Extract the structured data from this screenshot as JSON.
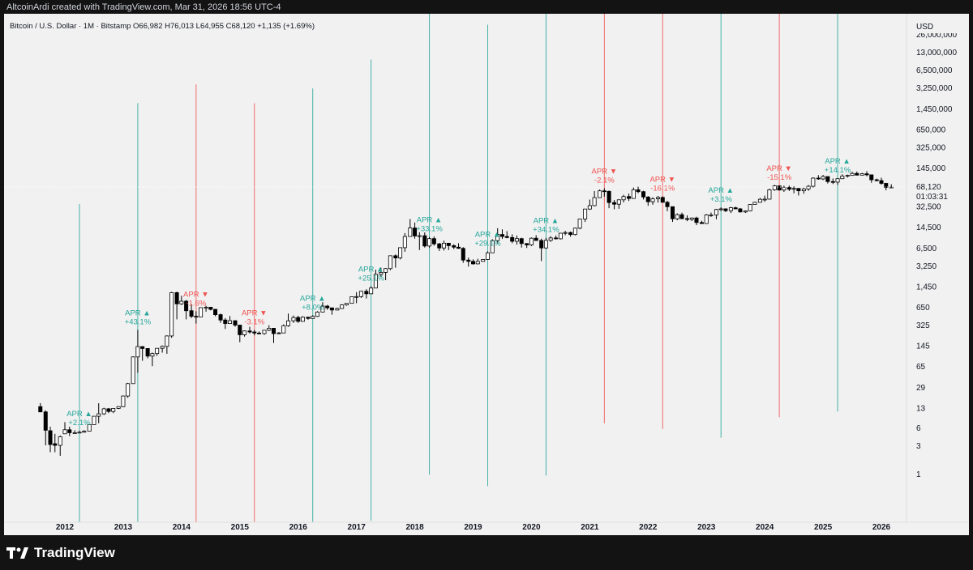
{
  "header": {
    "text": "AltcoinArdi created with TradingView.com, Mar 31, 2026 18:56 UTC-4"
  },
  "symbol": {
    "text": "Bitcoin / U.S. Dollar · 1M · Bitstamp  O66,982  H76,013  L64,955  C68,120  +1,135 (+1.69%)"
  },
  "brand": {
    "name": "TradingView"
  },
  "colors": {
    "up": "#26a69a",
    "down": "#ef5350",
    "candle": "#000000",
    "background": "#f1f1f1"
  },
  "chart_data": {
    "type": "candlestick",
    "scale": "log",
    "currency": "USD",
    "y_ticks": [
      "26,000,000",
      "13,000,000",
      "6,500,000",
      "3,250,000",
      "1,450,000",
      "650,000",
      "325,000",
      "145,000",
      "32,500",
      "14,500",
      "6,500",
      "3,250",
      "1,450",
      "650",
      "325",
      "145",
      "65",
      "29",
      "13",
      "6",
      "3",
      "1"
    ],
    "y_tick_values": [
      26000000,
      13000000,
      6500000,
      3250000,
      1450000,
      650000,
      325000,
      145000,
      32500,
      14500,
      6500,
      3250,
      1450,
      650,
      325,
      145,
      65,
      29,
      13,
      6,
      3,
      1
    ],
    "x_ticks": [
      "2012",
      "2013",
      "2014",
      "2015",
      "2016",
      "2017",
      "2018",
      "2019",
      "2020",
      "2021",
      "2022",
      "2023",
      "2024",
      "2025",
      "2026"
    ],
    "last_price": {
      "value": "68,120",
      "countdown": "01:03:31"
    },
    "annotations": [
      {
        "year": 2012,
        "month": "APR",
        "dir": "up",
        "arrow": "▲",
        "change": "+2.1%"
      },
      {
        "year": 2013,
        "month": "APR",
        "dir": "up",
        "arrow": "▲",
        "change": "+43.1%"
      },
      {
        "year": 2014,
        "month": "APR",
        "dir": "down",
        "arrow": "▼",
        "change": "-1.6%"
      },
      {
        "year": 2015,
        "month": "APR",
        "dir": "down",
        "arrow": "▼",
        "change": "-3.1%"
      },
      {
        "year": 2016,
        "month": "APR",
        "dir": "up",
        "arrow": "▲",
        "change": "+8.0%"
      },
      {
        "year": 2017,
        "month": "APR",
        "dir": "up",
        "arrow": "▲",
        "change": "+25.1%"
      },
      {
        "year": 2018,
        "month": "APR",
        "dir": "up",
        "arrow": "▲",
        "change": "+33.1%"
      },
      {
        "year": 2019,
        "month": "APR",
        "dir": "up",
        "arrow": "▲",
        "change": "+29.1%"
      },
      {
        "year": 2020,
        "month": "APR",
        "dir": "up",
        "arrow": "▲",
        "change": "+34.1%"
      },
      {
        "year": 2021,
        "month": "APR",
        "dir": "down",
        "arrow": "▼",
        "change": "-2.1%"
      },
      {
        "year": 2022,
        "month": "APR",
        "dir": "down",
        "arrow": "▼",
        "change": "-16.1%"
      },
      {
        "year": 2023,
        "month": "APR",
        "dir": "up",
        "arrow": "▲",
        "change": "+3.1%"
      },
      {
        "year": 2024,
        "month": "APR",
        "dir": "down",
        "arrow": "▼",
        "change": "-15.1%"
      },
      {
        "year": 2025,
        "month": "APR",
        "dir": "up",
        "arrow": "▲",
        "change": "+14.1%"
      }
    ],
    "candles": [
      [
        2011.58,
        13.5,
        15.5,
        10.9,
        11.0
      ],
      [
        2011.67,
        11.0,
        11.7,
        3.0,
        5.4
      ],
      [
        2011.75,
        5.3,
        6.2,
        2.3,
        3.1
      ],
      [
        2011.83,
        3.2,
        4.7,
        2.3,
        3.0
      ],
      [
        2011.92,
        3.0,
        4.4,
        2.0,
        4.2
      ],
      [
        2012.0,
        4.7,
        7.4,
        4.7,
        5.5
      ],
      [
        2012.08,
        5.5,
        6.2,
        4.3,
        4.9
      ],
      [
        2012.17,
        4.9,
        5.4,
        4.8,
        4.9
      ],
      [
        2012.25,
        4.9,
        5.3,
        4.8,
        5.0
      ],
      [
        2012.33,
        5.0,
        5.4,
        4.9,
        5.2
      ],
      [
        2012.42,
        5.2,
        6.7,
        5.2,
        6.7
      ],
      [
        2012.5,
        6.7,
        9.3,
        6.7,
        9.3
      ],
      [
        2012.58,
        9.3,
        15.4,
        7.1,
        10.2
      ],
      [
        2012.67,
        10.2,
        12.9,
        9.8,
        12.4
      ],
      [
        2012.75,
        12.4,
        12.8,
        10.5,
        11.2
      ],
      [
        2012.83,
        11.2,
        12.7,
        10.5,
        12.6
      ],
      [
        2012.92,
        12.6,
        13.7,
        12.3,
        13.5
      ],
      [
        2013.0,
        13.5,
        20.8,
        13.2,
        20.4
      ],
      [
        2013.08,
        20.4,
        34.0,
        19.0,
        33.0
      ],
      [
        2013.17,
        33.0,
        95.0,
        33.0,
        93.0
      ],
      [
        2013.25,
        93.0,
        266,
        50.0,
        139
      ],
      [
        2013.33,
        139,
        140,
        80,
        129
      ],
      [
        2013.42,
        129,
        130,
        88,
        96
      ],
      [
        2013.5,
        96,
        110,
        65,
        106
      ],
      [
        2013.58,
        106,
        130,
        97,
        130
      ],
      [
        2013.67,
        130,
        145,
        110,
        140
      ],
      [
        2013.75,
        140,
        215,
        105,
        210
      ],
      [
        2013.83,
        210,
        1163,
        195,
        1130
      ],
      [
        2013.92,
        1130,
        1170,
        400,
        730
      ],
      [
        2014.0,
        730,
        1000,
        700,
        810
      ],
      [
        2014.08,
        810,
        850,
        400,
        560
      ],
      [
        2014.17,
        560,
        720,
        420,
        450
      ],
      [
        2014.25,
        450,
        550,
        340,
        440
      ],
      [
        2014.33,
        440,
        630,
        440,
        630
      ],
      [
        2014.42,
        630,
        680,
        540,
        640
      ],
      [
        2014.5,
        640,
        650,
        565,
        590
      ],
      [
        2014.58,
        590,
        600,
        450,
        480
      ],
      [
        2014.67,
        480,
        500,
        350,
        390
      ],
      [
        2014.75,
        390,
        420,
        275,
        340
      ],
      [
        2014.83,
        340,
        455,
        340,
        380
      ],
      [
        2014.92,
        380,
        385,
        300,
        320
      ],
      [
        2015.0,
        320,
        320,
        165,
        220
      ],
      [
        2015.08,
        220,
        260,
        205,
        255
      ],
      [
        2015.17,
        255,
        300,
        230,
        245
      ],
      [
        2015.25,
        245,
        265,
        215,
        235
      ],
      [
        2015.33,
        235,
        250,
        225,
        230
      ],
      [
        2015.42,
        230,
        265,
        220,
        262
      ],
      [
        2015.5,
        262,
        318,
        253,
        283
      ],
      [
        2015.58,
        283,
        285,
        160,
        230
      ],
      [
        2015.67,
        230,
        245,
        225,
        236
      ],
      [
        2015.75,
        236,
        330,
        235,
        312
      ],
      [
        2015.83,
        312,
        500,
        300,
        378
      ],
      [
        2015.92,
        378,
        465,
        350,
        430
      ],
      [
        2016.0,
        430,
        460,
        350,
        370
      ],
      [
        2016.08,
        370,
        450,
        370,
        435
      ],
      [
        2016.17,
        435,
        440,
        395,
        415
      ],
      [
        2016.25,
        415,
        470,
        415,
        450
      ],
      [
        2016.33,
        450,
        550,
        440,
        530
      ],
      [
        2016.42,
        530,
        780,
        525,
        670
      ],
      [
        2016.5,
        670,
        700,
        580,
        625
      ],
      [
        2016.58,
        625,
        625,
        480,
        575
      ],
      [
        2016.67,
        575,
        630,
        570,
        610
      ],
      [
        2016.75,
        610,
        720,
        600,
        700
      ],
      [
        2016.83,
        700,
        750,
        680,
        745
      ],
      [
        2016.92,
        745,
        970,
        745,
        965
      ],
      [
        2017.0,
        965,
        1150,
        750,
        970
      ],
      [
        2017.08,
        970,
        1210,
        920,
        1190
      ],
      [
        2017.17,
        1190,
        1290,
        900,
        1080
      ],
      [
        2017.25,
        1080,
        1450,
        1070,
        1350
      ],
      [
        2017.33,
        1350,
        2760,
        1350,
        2300
      ],
      [
        2017.42,
        2300,
        2980,
        2100,
        2480
      ],
      [
        2017.5,
        2480,
        2920,
        1830,
        2870
      ],
      [
        2017.58,
        2870,
        4750,
        2700,
        4730
      ],
      [
        2017.67,
        4730,
        4980,
        2970,
        4340
      ],
      [
        2017.75,
        4340,
        6470,
        4100,
        6470
      ],
      [
        2017.83,
        6470,
        11400,
        5520,
        10000
      ],
      [
        2017.92,
        10000,
        19700,
        10000,
        13900
      ],
      [
        2018.0,
        13900,
        17200,
        9200,
        10200
      ],
      [
        2018.08,
        10200,
        11800,
        5900,
        10300
      ],
      [
        2018.17,
        10300,
        11700,
        6500,
        6900
      ],
      [
        2018.25,
        6900,
        9800,
        6400,
        9200
      ],
      [
        2018.33,
        9200,
        10000,
        7000,
        7500
      ],
      [
        2018.42,
        7500,
        7800,
        5700,
        6400
      ],
      [
        2018.5,
        6400,
        8500,
        5800,
        7700
      ],
      [
        2018.58,
        7700,
        7800,
        5900,
        7000
      ],
      [
        2018.67,
        7000,
        7400,
        6100,
        6600
      ],
      [
        2018.75,
        6600,
        7700,
        6200,
        6300
      ],
      [
        2018.83,
        6300,
        6600,
        3600,
        4000
      ],
      [
        2018.92,
        4000,
        4400,
        3100,
        3800
      ],
      [
        2019.0,
        3800,
        4100,
        3350,
        3450
      ],
      [
        2019.08,
        3450,
        4200,
        3400,
        3800
      ],
      [
        2019.17,
        3800,
        4100,
        3800,
        4100
      ],
      [
        2019.25,
        4100,
        5600,
        4100,
        5300
      ],
      [
        2019.33,
        5300,
        9000,
        5300,
        8500
      ],
      [
        2019.42,
        8500,
        13800,
        7500,
        10800
      ],
      [
        2019.5,
        10800,
        13200,
        9100,
        10000
      ],
      [
        2019.58,
        10000,
        12300,
        9300,
        9600
      ],
      [
        2019.67,
        9600,
        10900,
        7700,
        8300
      ],
      [
        2019.75,
        8300,
        10400,
        7300,
        9200
      ],
      [
        2019.83,
        9200,
        9500,
        6500,
        7600
      ],
      [
        2019.92,
        7600,
        7700,
        6400,
        7200
      ],
      [
        2020.0,
        7200,
        9600,
        6900,
        9350
      ],
      [
        2020.08,
        9350,
        10500,
        8500,
        8550
      ],
      [
        2020.17,
        8550,
        9200,
        3850,
        6400
      ],
      [
        2020.25,
        6400,
        9500,
        6200,
        8600
      ],
      [
        2020.33,
        8600,
        10100,
        8100,
        9450
      ],
      [
        2020.42,
        9450,
        10400,
        8900,
        9140
      ],
      [
        2020.5,
        9140,
        11400,
        8900,
        11350
      ],
      [
        2020.58,
        11350,
        12470,
        10500,
        11650
      ],
      [
        2020.67,
        11650,
        12100,
        9900,
        10780
      ],
      [
        2020.75,
        10780,
        14100,
        10400,
        13800
      ],
      [
        2020.83,
        13800,
        19900,
        13200,
        19700
      ],
      [
        2020.92,
        19700,
        29300,
        17600,
        29000
      ],
      [
        2021.0,
        29000,
        41900,
        28100,
        33100
      ],
      [
        2021.08,
        33100,
        58300,
        32300,
        45200
      ],
      [
        2021.17,
        45200,
        61800,
        45000,
        58800
      ],
      [
        2021.25,
        58800,
        64800,
        47000,
        57700
      ],
      [
        2021.33,
        57700,
        59500,
        30000,
        37300
      ],
      [
        2021.42,
        37300,
        41300,
        28800,
        35000
      ],
      [
        2021.5,
        35000,
        42400,
        29300,
        41500
      ],
      [
        2021.58,
        41500,
        50500,
        37400,
        47100
      ],
      [
        2021.67,
        47100,
        52900,
        39600,
        43800
      ],
      [
        2021.75,
        43800,
        66900,
        43300,
        61300
      ],
      [
        2021.83,
        61300,
        69000,
        53500,
        57000
      ],
      [
        2021.92,
        57000,
        59000,
        42000,
        46300
      ],
      [
        2022.0,
        46300,
        48000,
        32900,
        38500
      ],
      [
        2022.08,
        38500,
        45800,
        34300,
        43200
      ],
      [
        2022.17,
        43200,
        48200,
        37200,
        45500
      ],
      [
        2022.25,
        45500,
        47400,
        37600,
        37700
      ],
      [
        2022.33,
        37700,
        40000,
        26700,
        31800
      ],
      [
        2022.42,
        31800,
        31900,
        17600,
        19900
      ],
      [
        2022.5,
        19900,
        24600,
        18800,
        23300
      ],
      [
        2022.58,
        23300,
        25200,
        19500,
        20000
      ],
      [
        2022.67,
        20000,
        22700,
        18100,
        19400
      ],
      [
        2022.75,
        19400,
        20900,
        18200,
        20500
      ],
      [
        2022.83,
        20500,
        21500,
        15500,
        17200
      ],
      [
        2022.92,
        17200,
        18400,
        16300,
        16500
      ],
      [
        2023.0,
        16500,
        23900,
        16500,
        23100
      ],
      [
        2023.08,
        23100,
        25300,
        21400,
        23100
      ],
      [
        2023.17,
        23100,
        29200,
        19500,
        28500
      ],
      [
        2023.25,
        28500,
        31000,
        26900,
        29200
      ],
      [
        2023.33,
        29200,
        29800,
        25800,
        27200
      ],
      [
        2023.42,
        27200,
        31400,
        24800,
        30500
      ],
      [
        2023.5,
        30500,
        31800,
        28900,
        29200
      ],
      [
        2023.58,
        29200,
        30200,
        25300,
        25900
      ],
      [
        2023.67,
        25900,
        27500,
        24900,
        27000
      ],
      [
        2023.75,
        27000,
        35200,
        26600,
        34600
      ],
      [
        2023.83,
        34600,
        38400,
        34100,
        37700
      ],
      [
        2023.92,
        37700,
        44700,
        37600,
        42300
      ],
      [
        2024.0,
        42300,
        48900,
        38500,
        42600
      ],
      [
        2024.08,
        42600,
        63900,
        41900,
        61200
      ],
      [
        2024.17,
        61200,
        73800,
        59000,
        71300
      ],
      [
        2024.25,
        71300,
        72700,
        59600,
        60700
      ],
      [
        2024.33,
        60700,
        71900,
        56500,
        67500
      ],
      [
        2024.42,
        67500,
        71900,
        58400,
        62700
      ],
      [
        2024.5,
        62700,
        70000,
        53500,
        64600
      ],
      [
        2024.58,
        64600,
        65000,
        49000,
        58900
      ],
      [
        2024.67,
        58900,
        66500,
        52600,
        63300
      ],
      [
        2024.75,
        63300,
        73600,
        58900,
        70200
      ],
      [
        2024.83,
        70200,
        99500,
        66800,
        96400
      ],
      [
        2024.92,
        96400,
        108300,
        90500,
        93400
      ],
      [
        2025.0,
        93400,
        109300,
        89200,
        102400
      ],
      [
        2025.08,
        102400,
        102700,
        78200,
        84300
      ],
      [
        2025.17,
        84300,
        95000,
        76600,
        82500
      ],
      [
        2025.25,
        82500,
        95800,
        74400,
        94200
      ],
      [
        2025.33,
        94200,
        111900,
        93400,
        104600
      ],
      [
        2025.42,
        104600,
        110400,
        98200,
        107100
      ],
      [
        2025.5,
        107100,
        123200,
        105300,
        115700
      ],
      [
        2025.58,
        115700,
        124400,
        107300,
        108200
      ],
      [
        2025.67,
        108200,
        117900,
        107300,
        114000
      ],
      [
        2025.75,
        114000,
        126200,
        103500,
        109500
      ],
      [
        2025.83,
        109500,
        110600,
        80600,
        90400
      ],
      [
        2025.92,
        90400,
        94600,
        84500,
        87500
      ],
      [
        2026.0,
        87500,
        97900,
        74600,
        78600
      ],
      [
        2026.08,
        78600,
        80000,
        60000,
        66900
      ],
      [
        2026.17,
        66982,
        76013,
        64955,
        68120
      ]
    ]
  }
}
